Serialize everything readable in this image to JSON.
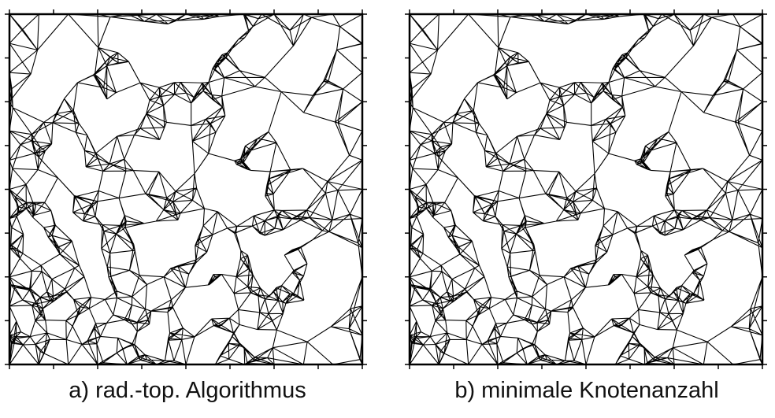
{
  "figure": {
    "panels": [
      {
        "caption": "a) rad.-top. Algorithmus"
      },
      {
        "caption": "b) minimale Knotenanzahl"
      }
    ]
  }
}
